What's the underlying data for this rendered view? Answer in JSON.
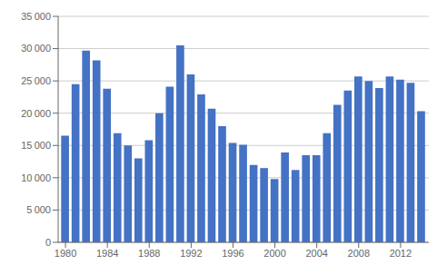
{
  "chart_data": {
    "type": "bar",
    "x": [
      1980,
      1981,
      1982,
      1983,
      1984,
      1985,
      1986,
      1987,
      1988,
      1989,
      1990,
      1991,
      1992,
      1993,
      1994,
      1995,
      1996,
      1997,
      1998,
      1999,
      2000,
      2001,
      2002,
      2003,
      2004,
      2005,
      2006,
      2007,
      2008,
      2009,
      2010,
      2011,
      2012,
      2013,
      2014
    ],
    "values": [
      16500,
      24500,
      29700,
      28200,
      23800,
      16900,
      15000,
      13000,
      15800,
      20000,
      24100,
      30500,
      26000,
      22900,
      20700,
      18000,
      15400,
      15100,
      12000,
      11500,
      9800,
      13900,
      11200,
      13500,
      13500,
      16900,
      21300,
      23500,
      25700,
      25000,
      23900,
      25700,
      25200,
      24700,
      20300
    ],
    "color": "#4472C4",
    "xlim": [
      1979.3,
      2014.7
    ],
    "xticks": [
      1980,
      1984,
      1988,
      1992,
      1996,
      2000,
      2004,
      2008,
      2012
    ],
    "ylim": [
      0,
      35000
    ],
    "yticks": [
      0,
      {
        "value": 5000,
        "label": "5 000"
      },
      {
        "value": 10000,
        "label": "10 000"
      },
      {
        "value": 15000,
        "label": "15 000"
      },
      {
        "value": 20000,
        "label": "20 000"
      },
      {
        "value": 25000,
        "label": "25 000"
      },
      {
        "value": 30000,
        "label": "30 000"
      },
      {
        "value": 35000,
        "label": "35 000"
      }
    ],
    "grid": true
  }
}
